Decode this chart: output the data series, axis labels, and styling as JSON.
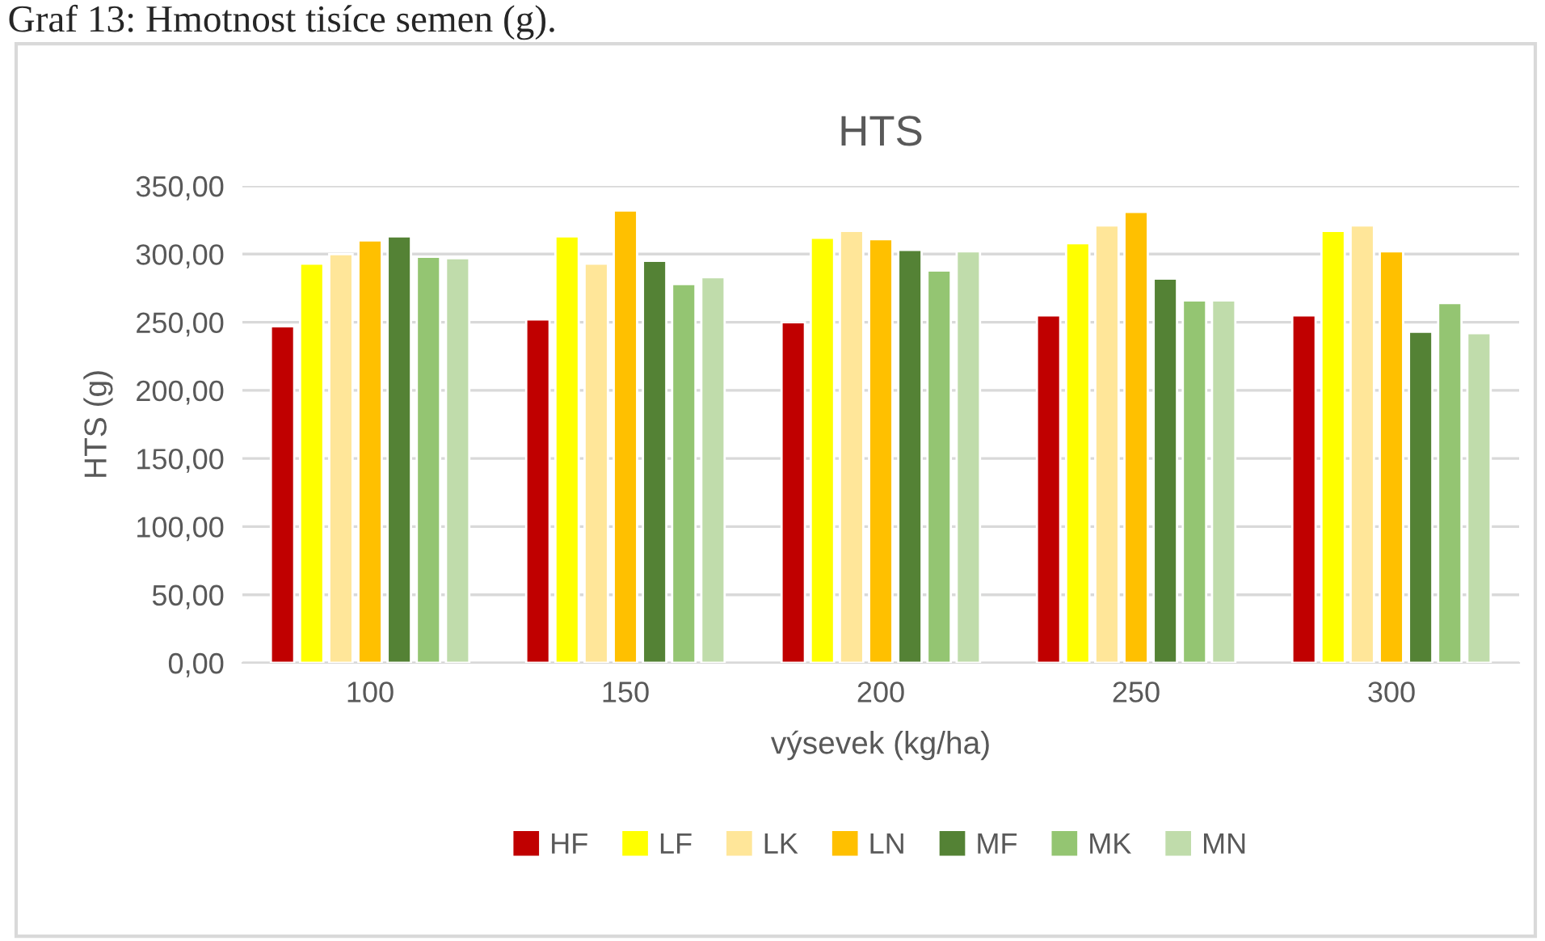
{
  "chart_data": {
    "type": "bar",
    "title": "HTS",
    "xlabel": "výsevek (kg/ha)",
    "ylabel": "HTS (g)",
    "annotations": [
      "Graf 13: Hmotnost tisíce semen (g)."
    ],
    "categories": [
      "100",
      "150",
      "200",
      "250",
      "300"
    ],
    "series": [
      {
        "name": "HF",
        "color": "#c00000",
        "values": [
          247,
          252,
          250,
          255,
          255
        ]
      },
      {
        "name": "LF",
        "color": "#ffff00",
        "values": [
          293,
          313,
          312,
          308,
          317
        ]
      },
      {
        "name": "LK",
        "color": "#ffe699",
        "values": [
          300,
          293,
          317,
          321,
          321
        ]
      },
      {
        "name": "LN",
        "color": "#ffc000",
        "values": [
          310,
          332,
          311,
          331,
          302
        ]
      },
      {
        "name": "MF",
        "color": "#548235",
        "values": [
          313,
          295,
          303,
          282,
          243
        ]
      },
      {
        "name": "MK",
        "color": "#94c572",
        "values": [
          298,
          278,
          288,
          266,
          264
        ]
      },
      {
        "name": "MN",
        "color": "#c0dcab",
        "values": [
          297,
          283,
          302,
          266,
          242
        ]
      }
    ],
    "ylim": [
      0,
      350
    ],
    "yticks": [
      {
        "value": 0,
        "label": "0,00"
      },
      {
        "value": 50,
        "label": "50,00"
      },
      {
        "value": 100,
        "label": "100,00"
      },
      {
        "value": 150,
        "label": "150,00"
      },
      {
        "value": 200,
        "label": "200,00"
      },
      {
        "value": 250,
        "label": "250,00"
      },
      {
        "value": 300,
        "label": "300,00"
      },
      {
        "value": 350,
        "label": "350,00"
      }
    ],
    "grid": "y",
    "legend": "bottom"
  }
}
